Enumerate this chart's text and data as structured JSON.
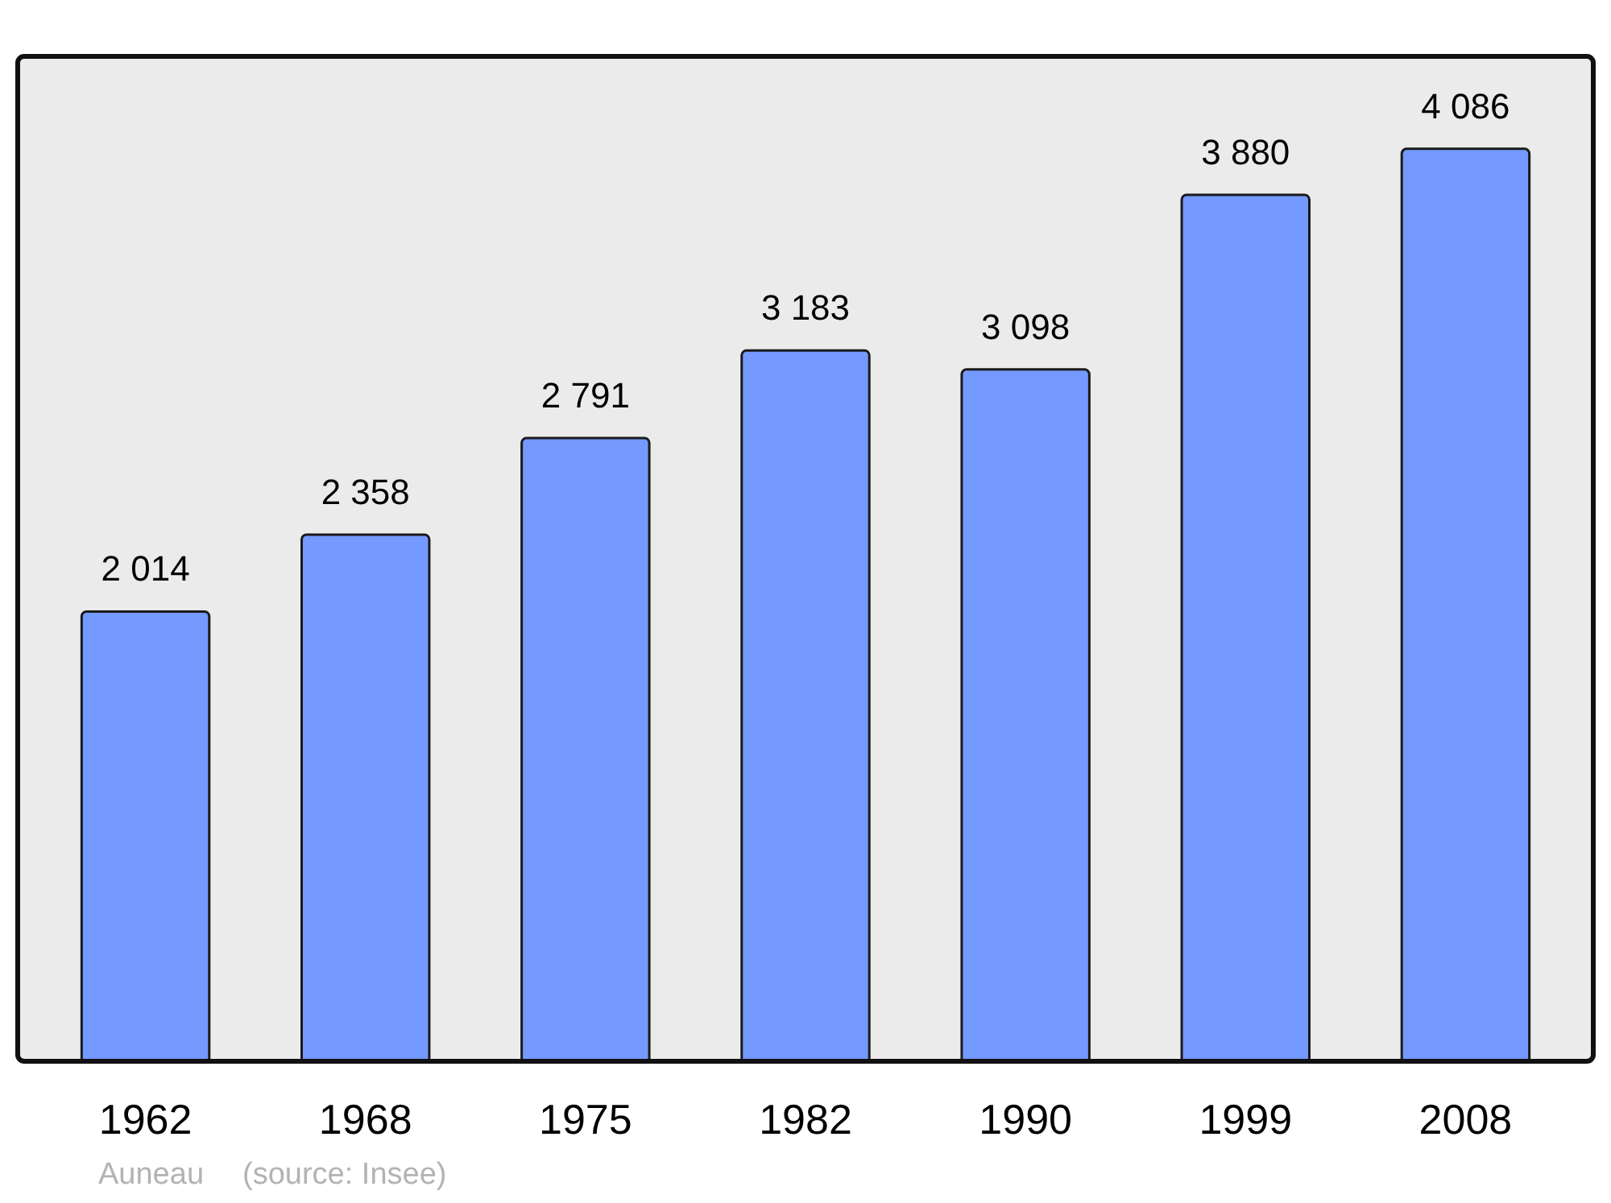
{
  "chart_data": {
    "type": "bar",
    "categories": [
      "1962",
      "1968",
      "1975",
      "1982",
      "1990",
      "1999",
      "2008"
    ],
    "values": [
      2014,
      2358,
      2791,
      3183,
      3098,
      3880,
      4086
    ],
    "value_labels": [
      "2 014",
      "2 358",
      "2 791",
      "3 183",
      "3 098",
      "3 880",
      "4 086"
    ],
    "color": "#7499ff",
    "annotations": [
      "Auneau",
      "(source: Insee)"
    ]
  }
}
